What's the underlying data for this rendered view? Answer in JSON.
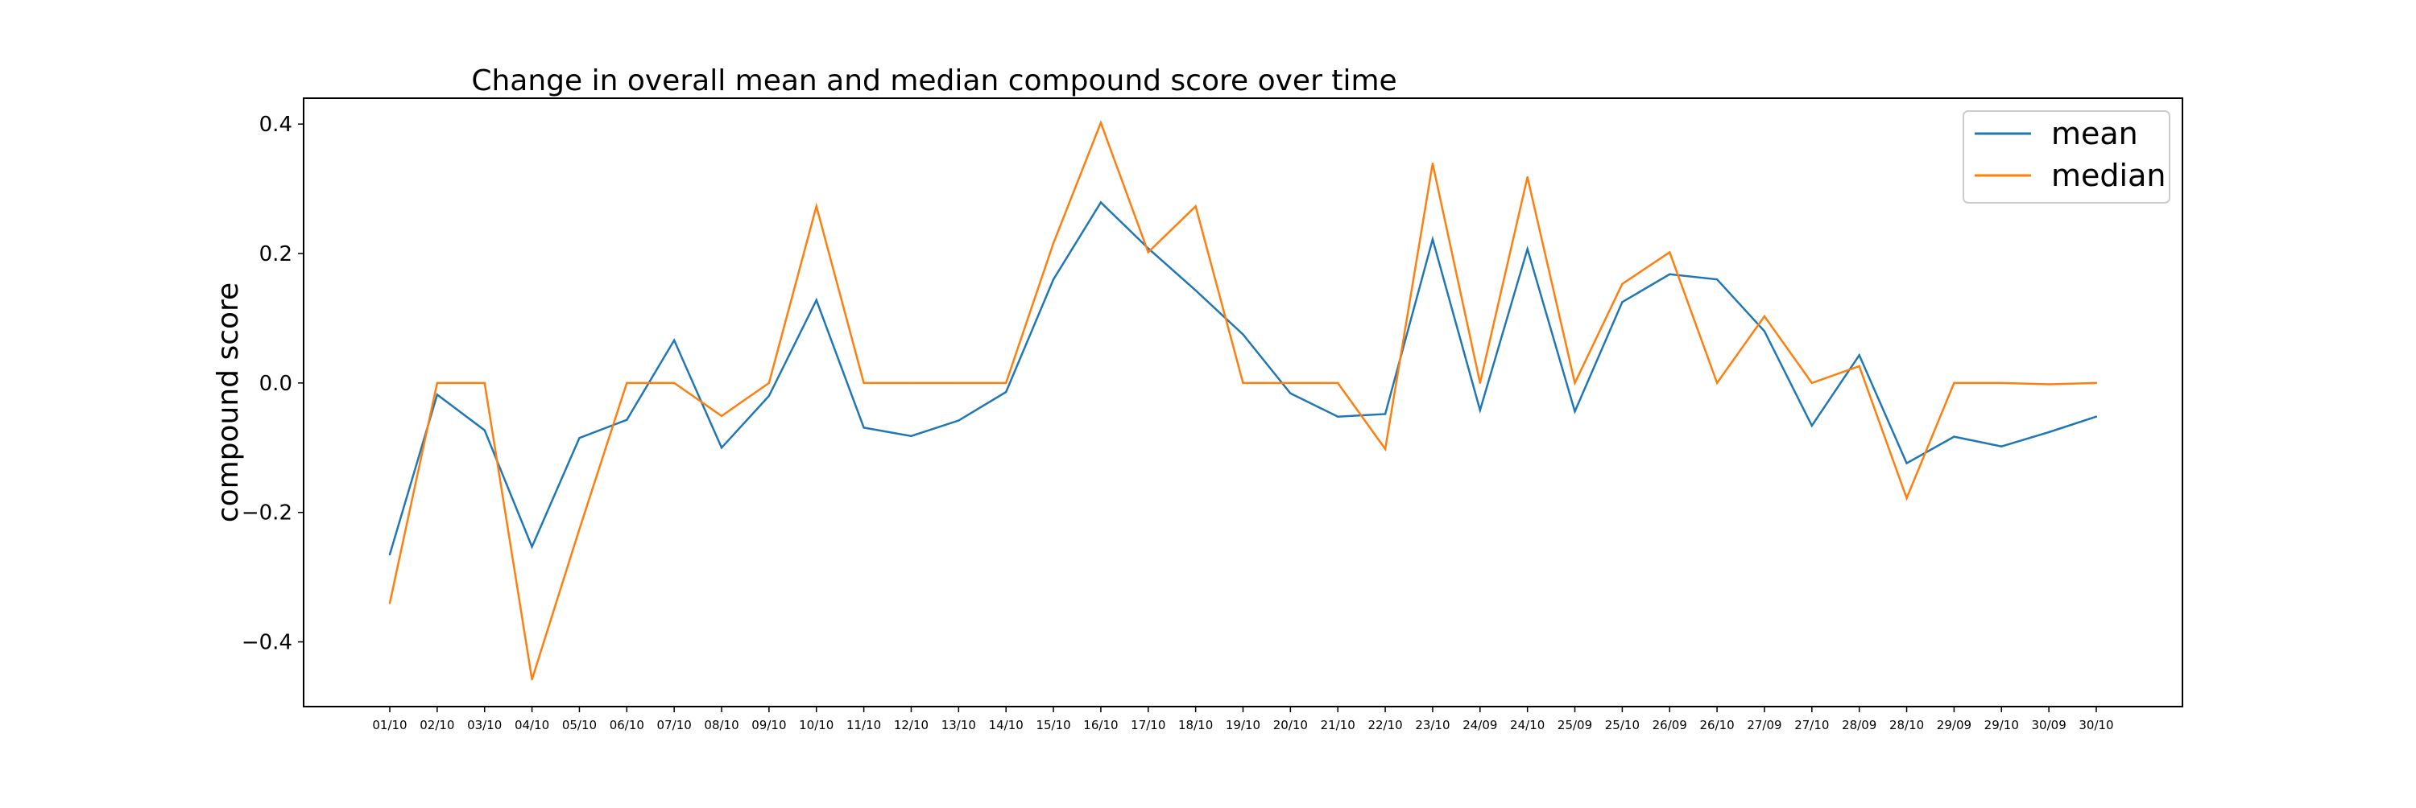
{
  "chart_data": {
    "type": "line",
    "title": "Change in overall mean and median compound score over time",
    "xlabel": "",
    "ylabel": "compound score",
    "ylim": [
      -0.5,
      0.44
    ],
    "yticks": [
      -0.4,
      -0.2,
      0.0,
      0.2,
      0.4
    ],
    "ytick_labels": [
      "−0.4",
      "−0.2",
      "0.0",
      "0.2",
      "0.4"
    ],
    "grid": false,
    "legend_position": "top-right",
    "categories": [
      "01/10",
      "02/10",
      "03/10",
      "04/10",
      "05/10",
      "06/10",
      "07/10",
      "08/10",
      "09/10",
      "10/10",
      "11/10",
      "12/10",
      "13/10",
      "14/10",
      "15/10",
      "16/10",
      "17/10",
      "18/10",
      "19/10",
      "20/10",
      "21/10",
      "22/10",
      "23/10",
      "24/09",
      "24/10",
      "25/09",
      "25/10",
      "26/09",
      "26/10",
      "27/09",
      "27/10",
      "28/09",
      "28/10",
      "29/09",
      "29/10",
      "30/09",
      "30/10"
    ],
    "series": [
      {
        "name": "mean",
        "color": "#1f77b4",
        "values": [
          -0.265,
          -0.018,
          -0.073,
          -0.253,
          -0.085,
          -0.057,
          0.066,
          -0.1,
          -0.02,
          0.128,
          -0.069,
          -0.082,
          -0.058,
          -0.014,
          0.16,
          0.279,
          0.208,
          0.143,
          0.075,
          -0.016,
          -0.052,
          -0.048,
          0.222,
          -0.042,
          0.207,
          -0.044,
          0.125,
          0.168,
          0.16,
          0.08,
          -0.066,
          0.043,
          -0.124,
          -0.083,
          -0.098,
          -0.076,
          -0.052
        ]
      },
      {
        "name": "median",
        "color": "#ff7f0e",
        "values": [
          -0.34,
          0.0,
          0.0,
          -0.458,
          -0.226,
          0.0,
          0.0,
          -0.051,
          0.0,
          0.273,
          0.0,
          0.0,
          0.0,
          0.0,
          0.216,
          0.402,
          0.202,
          0.273,
          0.0,
          0.0,
          0.0,
          -0.102,
          0.339,
          0.0,
          0.318,
          0.0,
          0.153,
          0.202,
          0.0,
          0.103,
          0.0,
          0.026,
          -0.178,
          0.0,
          0.0,
          -0.002,
          0.0
        ]
      }
    ]
  }
}
